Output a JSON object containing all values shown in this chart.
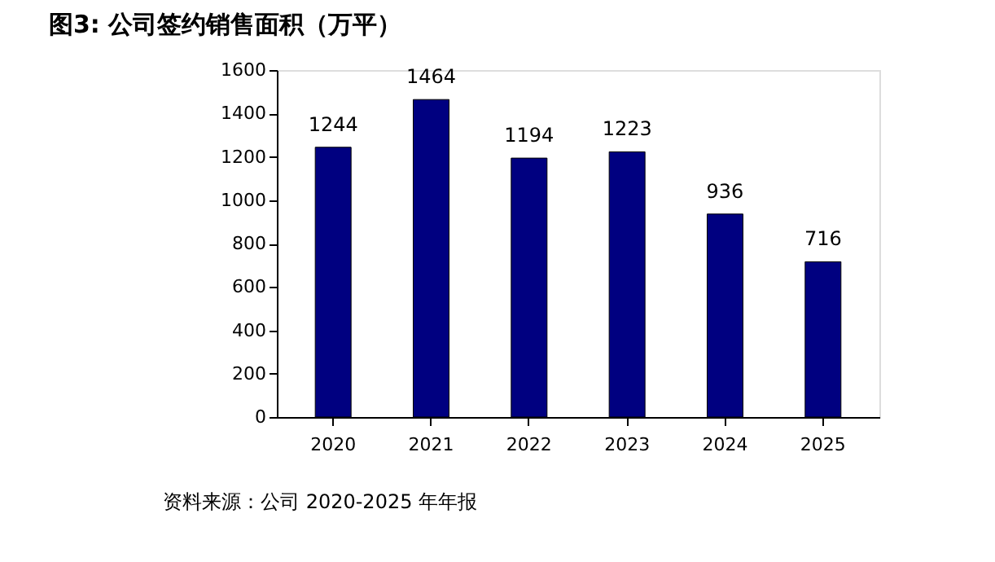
{
  "chart_data": {
    "type": "bar",
    "title": "图3:  公司签约销售面积（万平）",
    "categories": [
      "2020",
      "2021",
      "2022",
      "2023",
      "2024",
      "2025"
    ],
    "values": [
      1244,
      1464,
      1194,
      1223,
      936,
      716
    ],
    "color": "#000080",
    "ylim": [
      0,
      1600
    ],
    "yticks": [
      0,
      200,
      400,
      600,
      800,
      1000,
      1200,
      1400,
      1600
    ],
    "grid": false,
    "data_labels": true,
    "annotations": [
      "资料来源：公司 2020-2025 年年报"
    ]
  }
}
